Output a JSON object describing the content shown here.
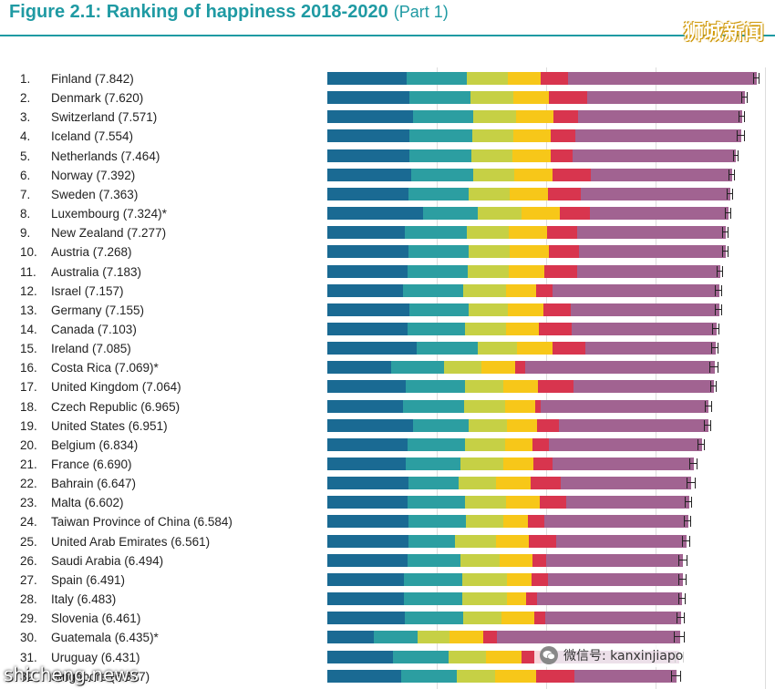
{
  "header": {
    "title": "Figure 2.1: Ranking of happiness 2018-2020",
    "part": "(Part 1)"
  },
  "watermarks": {
    "top_right": "狮城新闻",
    "wechat": "微信号: kanxinjiapo",
    "bottom_left": "shicheng.news"
  },
  "colors": {
    "seg1": "#1a6a93",
    "seg2": "#2c9ea1",
    "seg3": "#c6d045",
    "seg4": "#f7c719",
    "seg5": "#d8354e",
    "seg6": "#a16391",
    "title": "#1f9aa3"
  },
  "chart_data": {
    "type": "bar",
    "orientation": "horizontal",
    "stacked": true,
    "categories": [
      "Finland",
      "Denmark",
      "Switzerland",
      "Iceland",
      "Netherlands",
      "Norway",
      "Sweden",
      "Luxembourg",
      "New Zealand",
      "Austria",
      "Australia",
      "Israel",
      "Germany",
      "Canada",
      "Ireland",
      "Costa Rica",
      "United Kingdom",
      "Czech Republic",
      "United States",
      "Belgium",
      "France",
      "Bahrain",
      "Malta",
      "Taiwan Province of China",
      "United Arab Emirates",
      "Saudi Arabia",
      "Spain",
      "Italy",
      "Slovenia",
      "Guatemala",
      "Uruguay",
      "Singapore"
    ],
    "labels": [
      "Finland (7.842)",
      "Denmark (7.620)",
      "Switzerland (7.571)",
      "Iceland (7.554)",
      "Netherlands (7.464)",
      "Norway (7.392)",
      "Sweden (7.363)",
      "Luxembourg (7.324)*",
      "New Zealand (7.277)",
      "Austria (7.268)",
      "Australia (7.183)",
      "Israel (7.157)",
      "Germany (7.155)",
      "Canada (7.103)",
      "Ireland (7.085)",
      "Costa Rica (7.069)*",
      "United Kingdom (7.064)",
      "Czech Republic (6.965)",
      "United States (6.951)",
      "Belgium (6.834)",
      "France (6.690)",
      "Bahrain (6.647)",
      "Malta (6.602)",
      "Taiwan Province of China (6.584)",
      "United Arab Emirates (6.561)",
      "Saudi Arabia (6.494)",
      "Spain (6.491)",
      "Italy (6.483)",
      "Slovenia (6.461)",
      "Guatemala (6.435)*",
      "Uruguay (6.431)",
      "Singapore (6.377)"
    ],
    "values": [
      7.842,
      7.62,
      7.571,
      7.554,
      7.464,
      7.392,
      7.363,
      7.324,
      7.277,
      7.268,
      7.183,
      7.157,
      7.155,
      7.103,
      7.085,
      7.069,
      7.064,
      6.965,
      6.951,
      6.834,
      6.69,
      6.647,
      6.602,
      6.584,
      6.561,
      6.494,
      6.491,
      6.483,
      6.461,
      6.435,
      6.431,
      6.377
    ],
    "segments": [
      [
        1.45,
        1.1,
        0.75,
        0.6,
        0.5,
        3.44
      ],
      [
        1.5,
        1.12,
        0.78,
        0.65,
        0.7,
        2.87
      ],
      [
        1.57,
        1.1,
        0.78,
        0.68,
        0.45,
        2.99
      ],
      [
        1.5,
        1.15,
        0.75,
        0.68,
        0.45,
        3.01
      ],
      [
        1.5,
        1.13,
        0.75,
        0.7,
        0.4,
        2.97
      ],
      [
        1.54,
        1.12,
        0.75,
        0.7,
        0.7,
        2.58
      ],
      [
        1.48,
        1.1,
        0.75,
        0.7,
        0.6,
        2.73
      ],
      [
        1.75,
        1.0,
        0.8,
        0.7,
        0.55,
        2.52
      ],
      [
        1.42,
        1.12,
        0.78,
        0.7,
        0.55,
        2.7
      ],
      [
        1.48,
        1.1,
        0.75,
        0.72,
        0.55,
        2.67
      ],
      [
        1.46,
        1.1,
        0.75,
        0.65,
        0.6,
        2.62
      ],
      [
        1.38,
        1.1,
        0.78,
        0.55,
        0.3,
        3.04
      ],
      [
        1.5,
        1.08,
        0.72,
        0.65,
        0.5,
        2.7
      ],
      [
        1.46,
        1.05,
        0.75,
        0.6,
        0.6,
        2.64
      ],
      [
        1.64,
        1.1,
        0.72,
        0.65,
        0.6,
        2.37
      ],
      [
        1.16,
        0.98,
        0.68,
        0.62,
        0.18,
        3.45
      ],
      [
        1.44,
        1.08,
        0.7,
        0.62,
        0.65,
        2.57
      ],
      [
        1.38,
        1.12,
        0.75,
        0.55,
        0.1,
        3.07
      ],
      [
        1.56,
        1.02,
        0.7,
        0.55,
        0.4,
        2.72
      ],
      [
        1.46,
        1.06,
        0.72,
        0.5,
        0.3,
        2.79
      ],
      [
        1.44,
        1.0,
        0.78,
        0.55,
        0.35,
        2.57
      ],
      [
        1.48,
        0.92,
        0.68,
        0.64,
        0.55,
        2.38
      ],
      [
        1.46,
        1.06,
        0.75,
        0.62,
        0.48,
        2.23
      ],
      [
        1.48,
        1.06,
        0.68,
        0.45,
        0.3,
        2.61
      ],
      [
        1.48,
        0.86,
        0.75,
        0.6,
        0.5,
        2.37
      ],
      [
        1.46,
        0.98,
        0.7,
        0.6,
        0.25,
        2.5
      ],
      [
        1.4,
        1.06,
        0.82,
        0.45,
        0.3,
        2.46
      ],
      [
        1.4,
        1.06,
        0.82,
        0.35,
        0.2,
        2.65
      ],
      [
        1.42,
        1.06,
        0.7,
        0.6,
        0.2,
        2.48
      ],
      [
        0.85,
        0.8,
        0.58,
        0.62,
        0.25,
        3.34
      ],
      [
        1.2,
        1.02,
        0.68,
        0.65,
        0.35,
        2.53
      ],
      [
        1.35,
        1.02,
        0.7,
        0.75,
        0.7,
        1.85
      ]
    ],
    "ci": [
      [
        7.78,
        7.9
      ],
      [
        7.56,
        7.68
      ],
      [
        7.51,
        7.63
      ],
      [
        7.48,
        7.63
      ],
      [
        7.41,
        7.52
      ],
      [
        7.33,
        7.45
      ],
      [
        7.3,
        7.42
      ],
      [
        7.26,
        7.39
      ],
      [
        7.21,
        7.34
      ],
      [
        7.21,
        7.33
      ],
      [
        7.12,
        7.24
      ],
      [
        7.09,
        7.22
      ],
      [
        7.09,
        7.22
      ],
      [
        7.04,
        7.16
      ],
      [
        7.02,
        7.15
      ],
      [
        6.99,
        7.15
      ],
      [
        7.0,
        7.12
      ],
      [
        6.9,
        7.03
      ],
      [
        6.88,
        7.02
      ],
      [
        6.77,
        6.9
      ],
      [
        6.62,
        6.76
      ],
      [
        6.56,
        6.74
      ],
      [
        6.53,
        6.67
      ],
      [
        6.52,
        6.65
      ],
      [
        6.49,
        6.63
      ],
      [
        6.41,
        6.58
      ],
      [
        6.42,
        6.56
      ],
      [
        6.41,
        6.55
      ],
      [
        6.39,
        6.53
      ],
      [
        6.34,
        6.53
      ],
      [
        6.35,
        6.51
      ],
      [
        6.29,
        6.46
      ]
    ],
    "xlim": [
      0,
      8.2
    ]
  }
}
